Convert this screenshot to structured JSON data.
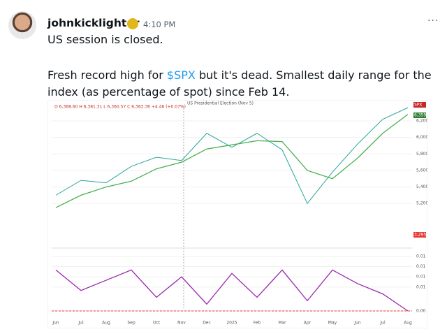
{
  "post": {
    "author": "johnkicklighter",
    "time": "4:10 PM",
    "line1": "US session is closed.",
    "text_before": "Fresh record high for ",
    "ticker": "$SPX",
    "text_after": " but it's dead. Smallest daily range for the index (as percentage of spot) since Feb 14."
  },
  "chart_data": [
    {
      "type": "line",
      "header": "O 6,368.60 H 6,381.31 L 6,360.57 C 6,363.36 +4.46 (+0.07%)",
      "annotation": "US Presidential Election (Nov 5)",
      "symbol": "SPX",
      "last_price": "6,359.52",
      "volume_label": "3,295",
      "categories": [
        "Jun",
        "Jul",
        "Aug",
        "Sep",
        "Oct",
        "Nov",
        "Dec",
        "2025",
        "Feb",
        "Mar",
        "Apr",
        "May",
        "Jun",
        "Jul",
        "Aug"
      ],
      "series": [
        {
          "color": "#26a69a",
          "values": [
            5300,
            5480,
            5450,
            5650,
            5760,
            5720,
            6050,
            5880,
            6050,
            5850,
            5200,
            5580,
            5920,
            6220,
            6360
          ]
        },
        {
          "color": "#4caf50",
          "values": [
            5150,
            5300,
            5400,
            5470,
            5620,
            5700,
            5860,
            5910,
            5960,
            5950,
            5600,
            5500,
            5750,
            6050,
            6280
          ]
        }
      ],
      "ylim": [
        4660,
        6395
      ],
      "yticks": [
        {
          "value": 6200,
          "label": "6,200.00"
        },
        {
          "value": 6000,
          "label": "6,000.00"
        },
        {
          "value": 5800,
          "label": "5,800.00"
        },
        {
          "value": 5600,
          "label": "5,600.00"
        },
        {
          "value": 5400,
          "label": "5,400.00"
        },
        {
          "value": 5200,
          "label": "5,200.00"
        }
      ]
    },
    {
      "type": "line",
      "series": [
        {
          "color": "#9c27b0",
          "values": [
            0.012,
            0.006,
            0.009,
            0.012,
            0.004,
            0.01,
            0.002,
            0.011,
            0.004,
            0.012,
            0.003,
            0.012,
            0.008,
            0.005,
            0
          ]
        }
      ],
      "ylim": [
        0,
        0.017
      ],
      "yticks": [
        {
          "value": 0.016,
          "label": "0.01"
        },
        {
          "value": 0.013,
          "label": "0.01"
        },
        {
          "value": 0.01,
          "label": "0.01"
        },
        {
          "value": 0.007,
          "label": "0.01"
        },
        {
          "value": 0,
          "label": "0.00"
        }
      ]
    }
  ]
}
